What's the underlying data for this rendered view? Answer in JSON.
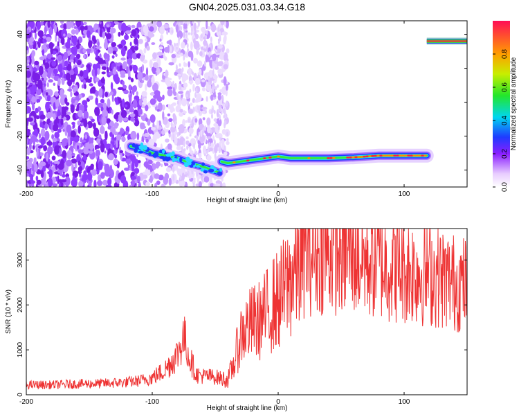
{
  "title": "GN04.2025.031.03.34.G18",
  "chart_data": [
    {
      "type": "heatmap",
      "xlabel": "Height of straight line (km)",
      "ylabel": "Frequency (Hz)",
      "xlim": [
        -200,
        150
      ],
      "ylim": [
        -50,
        48
      ],
      "xticks": [
        "-200",
        "-100",
        "0",
        "100"
      ],
      "yticks": [
        "-40",
        "-20",
        "0",
        "20",
        "40"
      ],
      "grid": false,
      "colorbar": {
        "label": "Normalized spectral amplitude",
        "range": [
          0,
          1
        ],
        "ticks": [
          "0.0",
          "0.2",
          "0.4",
          "0.6",
          "0.8"
        ]
      },
      "ridge": {
        "x": [
          -117,
          -110,
          -100,
          -90,
          -80,
          -70,
          -60,
          -52,
          -47,
          -45,
          -40,
          -30,
          -20,
          -10,
          0,
          10,
          20,
          40,
          60,
          80,
          100,
          118
        ],
        "y": [
          -26,
          -27,
          -30,
          -31.5,
          -33,
          -36,
          -38,
          -40,
          -41.5,
          -35,
          -36,
          -35,
          -34,
          -33,
          -32,
          -33,
          -33,
          -33,
          -32.5,
          -31.5,
          -31.5,
          -31.5
        ]
      },
      "segment": {
        "x": [
          118,
          150
        ],
        "y": [
          36,
          36
        ]
      }
    },
    {
      "type": "line",
      "xlabel": "Height of straight line (km)",
      "ylabel": "SNR (10 * v/v)",
      "xlim": [
        -200,
        150
      ],
      "ylim": [
        0,
        3700
      ],
      "xticks": [
        "-200",
        "-100",
        "0",
        "100"
      ],
      "yticks": [
        "0",
        "1000",
        "2000",
        "3000"
      ],
      "grid": false,
      "series": [
        {
          "color": "#ee3333",
          "x": [
            -200,
            -180,
            -160,
            -140,
            -120,
            -110,
            -100,
            -90,
            -80,
            -75,
            -70,
            -65,
            -60,
            -50,
            -40,
            -35,
            -30,
            -25,
            -20,
            -15,
            -10,
            -5,
            0,
            5,
            10,
            15,
            20,
            25,
            30,
            35,
            40,
            50,
            60,
            70,
            80,
            90,
            100,
            110,
            120,
            130,
            140,
            150
          ],
          "y": [
            220,
            220,
            240,
            250,
            280,
            310,
            380,
            550,
            900,
            1300,
            800,
            450,
            420,
            400,
            330,
            700,
            1300,
            1500,
            1600,
            1650,
            1800,
            2000,
            2100,
            2300,
            2600,
            2850,
            3050,
            3150,
            3150,
            3200,
            3200,
            3150,
            3100,
            3000,
            2950,
            2850,
            2800,
            2750,
            2700,
            2600,
            2500,
            2450
          ]
        }
      ]
    }
  ]
}
